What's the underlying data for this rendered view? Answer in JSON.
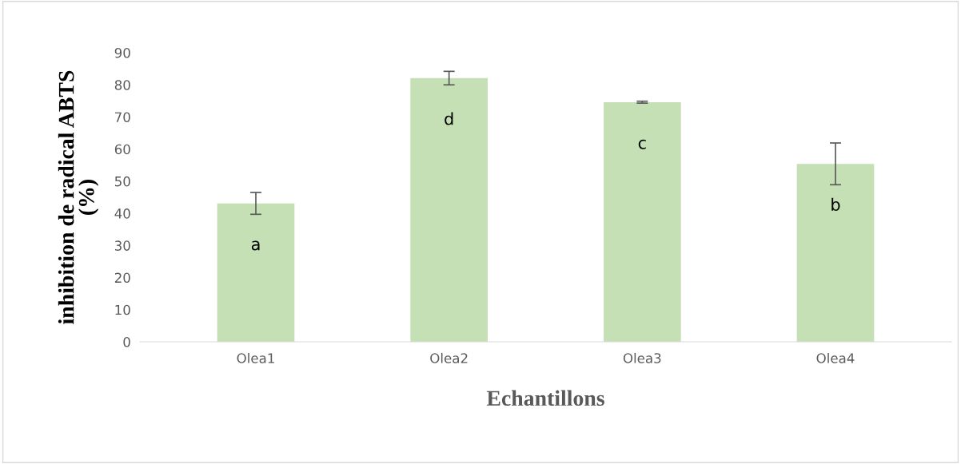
{
  "chart_data": {
    "type": "bar",
    "xlabel": "Echantillons",
    "ylabel": "inhibition de radical ABTS\n(%)",
    "categories": [
      "Olea1",
      "Olea2",
      "Olea3",
      "Olea4"
    ],
    "values": [
      43.1,
      82.1,
      74.6,
      55.4
    ],
    "errors": [
      3.4,
      2.1,
      0.3,
      6.5
    ],
    "color": "#c5e0b4",
    "ylim": [
      0,
      90
    ],
    "yticks": [
      0,
      10,
      20,
      30,
      40,
      50,
      60,
      70,
      80,
      90
    ],
    "grid": false,
    "annotations": [
      "a",
      "d",
      "c",
      "b"
    ]
  }
}
